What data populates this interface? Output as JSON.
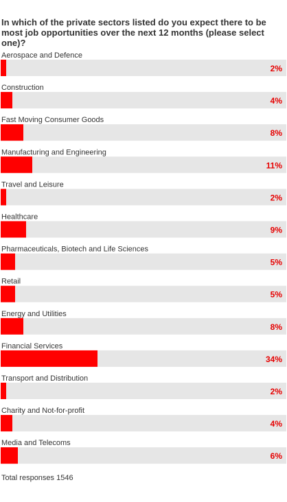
{
  "title": "In which of the private sectors listed do you expect there to be most job opportunities over the next 12 months (please select one)?",
  "footer": "Total responses 1546",
  "colors": {
    "bar": "#ff0000",
    "track": "#e6e6e6",
    "value_text": "#e60000",
    "label_text": "#333333"
  },
  "chart_data": {
    "type": "bar",
    "orientation": "horizontal",
    "categories": [
      "Aerospace and Defence",
      "Construction",
      "Fast Moving Consumer Goods",
      "Manufacturing and Engineering",
      "Travel and Leisure",
      "Healthcare",
      "Pharmaceuticals, Biotech and Life Sciences",
      "Retail",
      "Energy and Utilities",
      "Financial Services",
      "Transport and Distribution",
      "Charity and Not-for-profit",
      "Media and Telecoms"
    ],
    "values": [
      2,
      4,
      8,
      11,
      2,
      9,
      5,
      5,
      8,
      34,
      2,
      4,
      6
    ],
    "value_labels": [
      "2%",
      "4%",
      "8%",
      "11%",
      "2%",
      "9%",
      "5%",
      "5%",
      "8%",
      "34%",
      "2%",
      "4%",
      "6%"
    ],
    "xlim": [
      0,
      100
    ],
    "unit": "%"
  }
}
